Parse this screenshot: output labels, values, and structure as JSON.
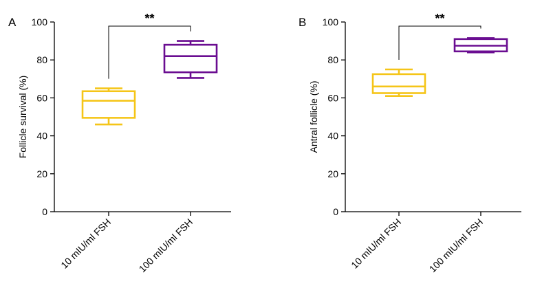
{
  "chart_data": [
    {
      "type": "box",
      "panel_label": "A",
      "ylabel": "Follicle survival (%)",
      "xlabel": "",
      "ylim": [
        0,
        100
      ],
      "yticks": [
        0,
        20,
        40,
        60,
        80,
        100
      ],
      "categories": [
        "10 mIU/ml FSH",
        "100 mIU/ml FSH"
      ],
      "boxes": [
        {
          "name": "10 mIU/ml FSH",
          "color": "#F5C518",
          "min": 46,
          "q1": 49.5,
          "median": 58.5,
          "q3": 63.5,
          "max": 65
        },
        {
          "name": "100 mIU/ml FSH",
          "color": "#6A0D91",
          "min": 70.5,
          "q1": 73.5,
          "median": 82,
          "q3": 88,
          "max": 90
        }
      ],
      "significance": {
        "label": "**",
        "from": 0,
        "to": 1
      }
    },
    {
      "type": "box",
      "panel_label": "B",
      "ylabel": "Antral follicle (%)",
      "xlabel": "",
      "ylim": [
        0,
        100
      ],
      "yticks": [
        0,
        20,
        40,
        60,
        80,
        100
      ],
      "categories": [
        "10 mIU/ml FSH",
        "100 mIU/ml FSH"
      ],
      "boxes": [
        {
          "name": "10 mIU/ml FSH",
          "color": "#F5C518",
          "min": 61,
          "q1": 62.5,
          "median": 66,
          "q3": 72.5,
          "max": 75
        },
        {
          "name": "100 mIU/ml FSH",
          "color": "#6A0D91",
          "min": 84,
          "q1": 84.5,
          "median": 87.5,
          "q3": 91,
          "max": 91.5
        }
      ],
      "significance": {
        "label": "**",
        "from": 0,
        "to": 1
      }
    }
  ]
}
